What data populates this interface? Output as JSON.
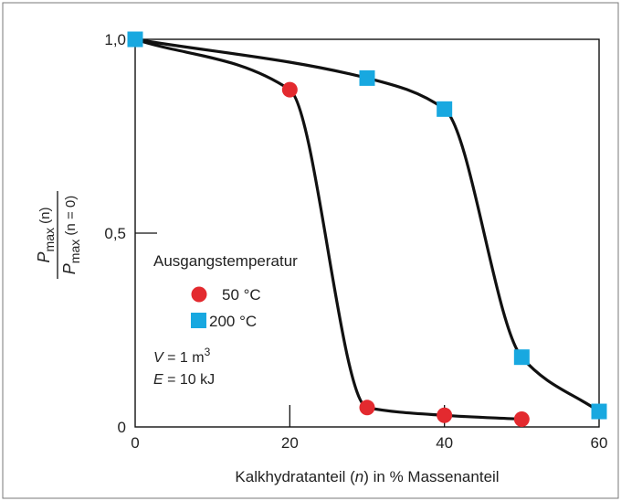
{
  "chart_data": {
    "type": "line",
    "x_ticks": [
      "0",
      "20",
      "40",
      "60"
    ],
    "y_ticks": [
      "0",
      "0,5",
      "1,0"
    ],
    "xlim": [
      0,
      60
    ],
    "ylim": [
      0,
      1.0
    ],
    "xlabel": {
      "pre": "Kalkhydratanteil (",
      "var": "n",
      "post": ") in % Massenanteil"
    },
    "ylabel": {
      "num_P": "P",
      "num_sub": "max",
      "num_arg": " (n)",
      "den_P": "P",
      "den_sub": "max",
      "den_arg": " (n = 0)"
    },
    "legend": {
      "title": "Ausgangstemperatur",
      "entries": [
        "50 °C",
        "200 °C"
      ]
    },
    "annotations": {
      "v_var": "V",
      "v_text": " = 1 m",
      "v_sup": "3",
      "e_var": "E",
      "e_text": " = 10 kJ"
    },
    "series": [
      {
        "name": "50 °C",
        "color": "#e32a2f",
        "marker": "circle",
        "x": [
          0,
          20,
          30,
          40,
          50
        ],
        "y": [
          1.0,
          0.87,
          0.05,
          0.03,
          0.02
        ]
      },
      {
        "name": "200 °C",
        "color": "#18a8e0",
        "marker": "square",
        "x": [
          0,
          30,
          40,
          50,
          60
        ],
        "y": [
          1.0,
          0.9,
          0.82,
          0.18,
          0.04
        ]
      }
    ]
  }
}
